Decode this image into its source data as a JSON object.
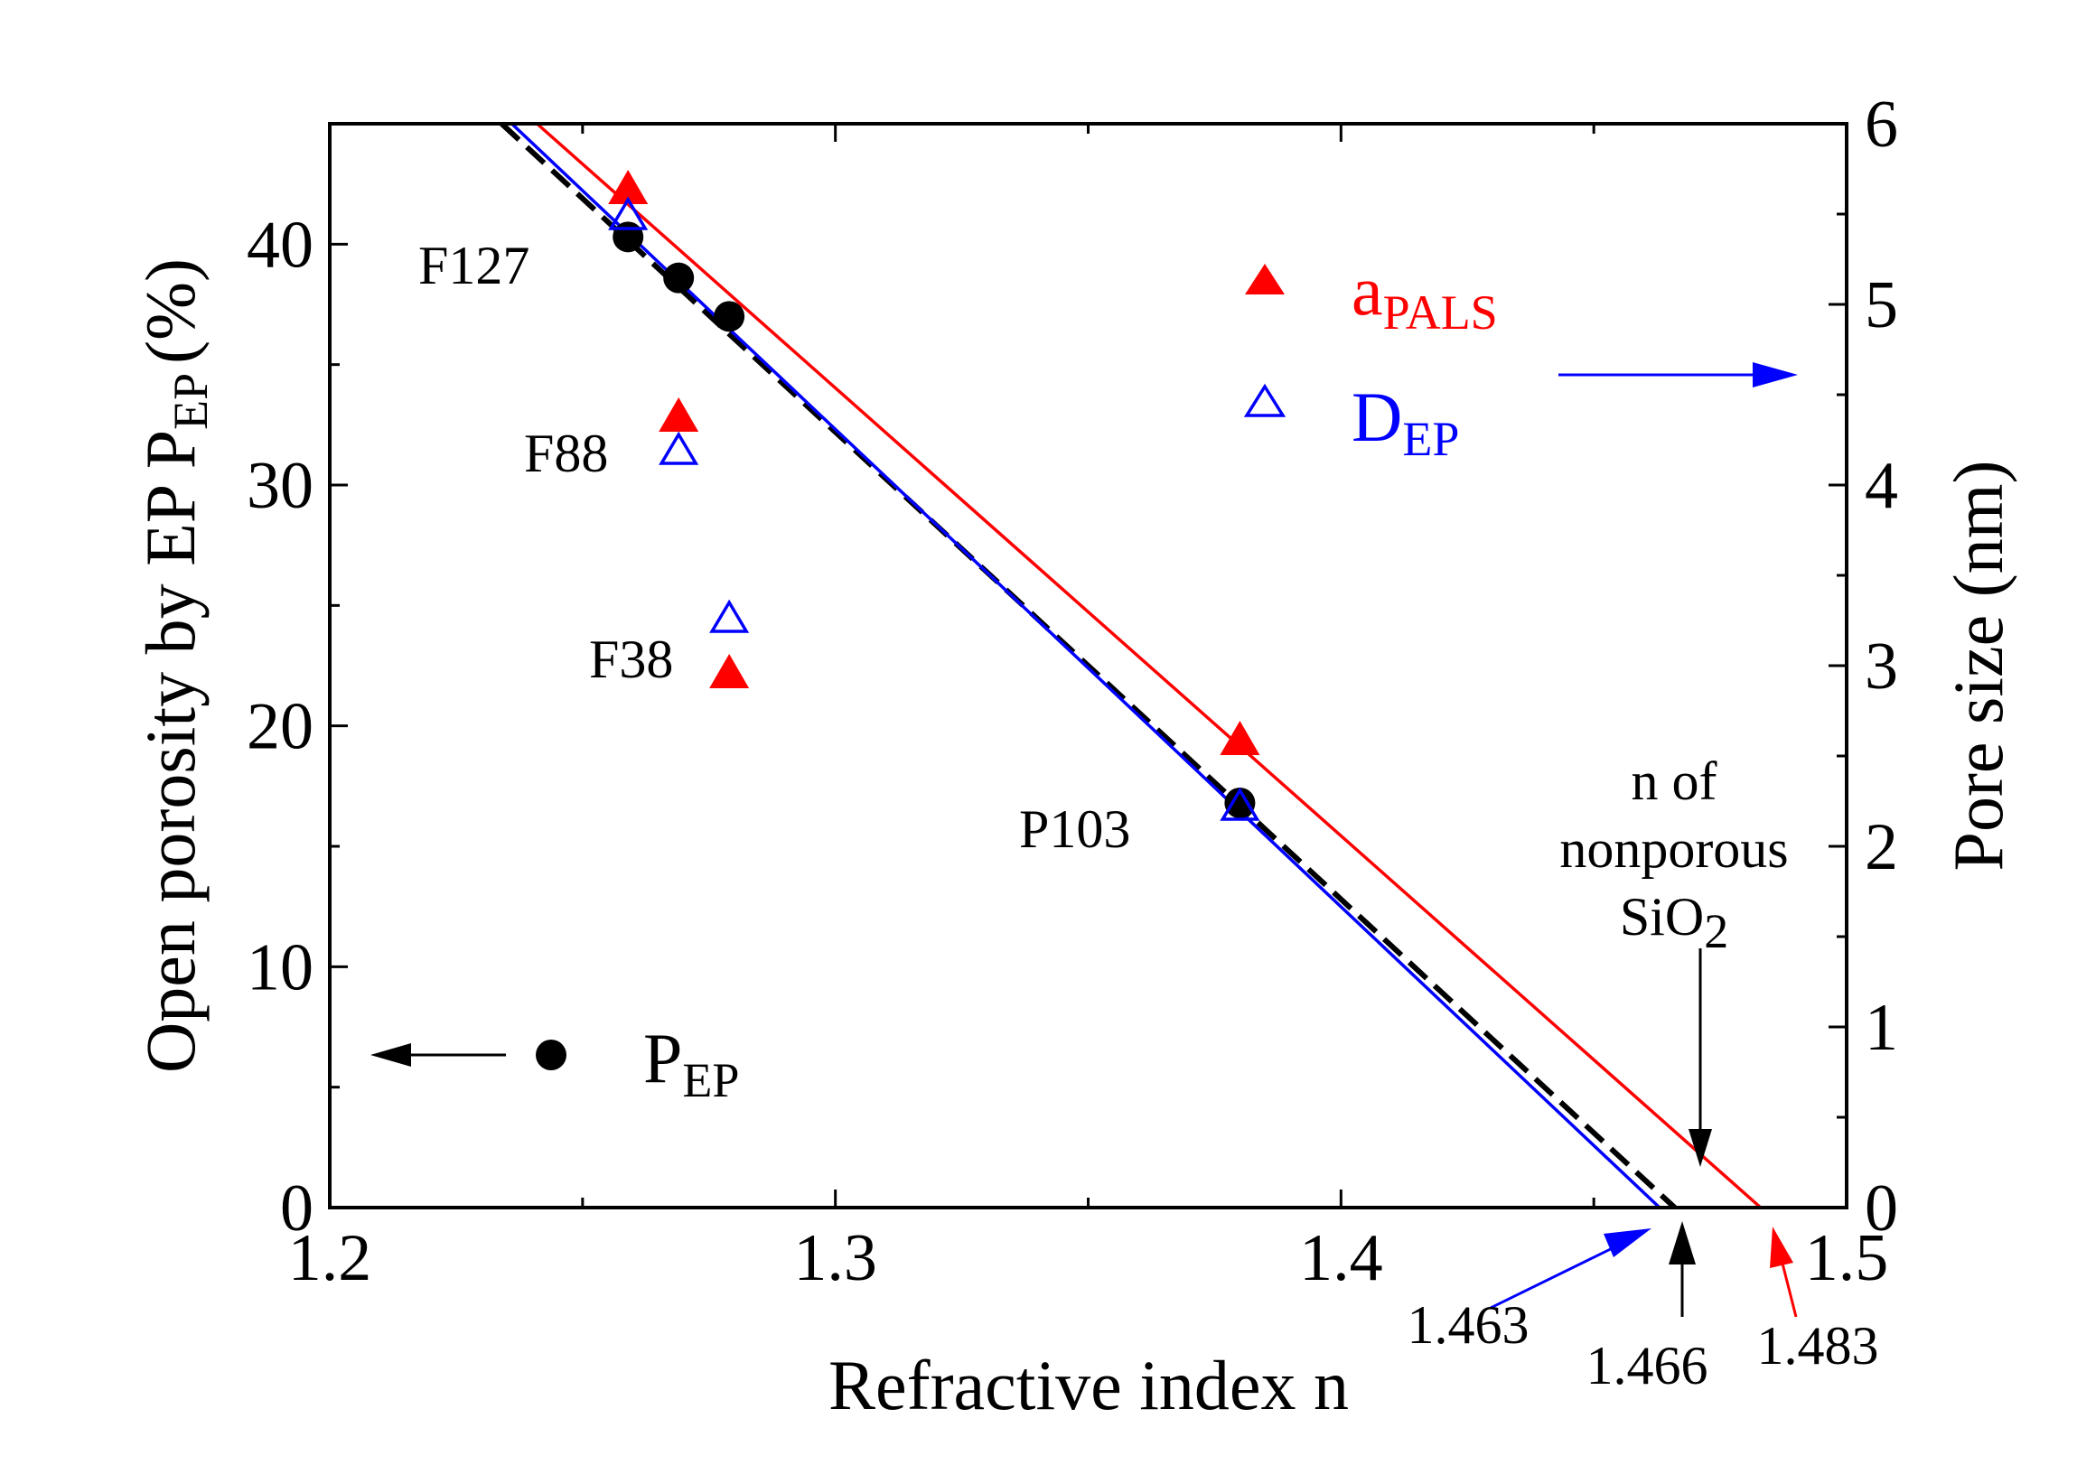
{
  "chart_data": {
    "type": "scatter",
    "xlabel": "Refractive index n",
    "ylabel_left": "Open porosity by EP P",
    "ylabel_left_sub": "EP",
    "ylabel_left_unit": "(%)",
    "ylabel_right": "Pore size (nm)",
    "xlim": [
      1.2,
      1.5
    ],
    "ylim_left": [
      0,
      45
    ],
    "ylim_right": [
      0,
      6
    ],
    "x_ticks": [
      "1.2",
      "1.3",
      "1.4",
      "1.5"
    ],
    "y_left_ticks": [
      "0",
      "10",
      "20",
      "30",
      "40"
    ],
    "y_right_ticks": [
      "0",
      "1",
      "2",
      "3",
      "4",
      "5",
      "6"
    ],
    "series": [
      {
        "name": "P_EP",
        "axis": "left",
        "marker": "filled-circle",
        "color": "#000000",
        "x": [
          1.259,
          1.269,
          1.279,
          1.38
        ],
        "y": [
          40.3,
          38.6,
          37.0,
          16.8
        ]
      },
      {
        "name": "a_PALS",
        "axis": "right",
        "marker": "filled-triangle",
        "color": "#ff0000",
        "x": [
          1.259,
          1.269,
          1.279,
          1.38
        ],
        "y": [
          5.65,
          4.39,
          2.97,
          2.6
        ]
      },
      {
        "name": "D_EP",
        "axis": "right",
        "marker": "open-triangle",
        "color": "#0000ff",
        "x": [
          1.259,
          1.269,
          1.279,
          1.38
        ],
        "y": [
          5.5,
          4.2,
          3.27,
          2.23
        ]
      }
    ],
    "fit_lines": [
      {
        "name": "P_EP fit",
        "axis": "left",
        "color": "#000000",
        "style": "dashed",
        "x": [
          1.234,
          1.466
        ],
        "y": [
          45,
          0
        ]
      },
      {
        "name": "D_EP fit",
        "axis": "right",
        "color": "#0000ff",
        "style": "solid",
        "x": [
          1.236,
          1.463
        ],
        "y": [
          6,
          0
        ]
      },
      {
        "name": "a_PALS fit",
        "axis": "right",
        "color": "#ff0000",
        "style": "solid",
        "x": [
          1.241,
          1.483
        ],
        "y": [
          6,
          0
        ]
      }
    ],
    "legend": {
      "a_pals_main": "a",
      "a_pals_sub": "PALS",
      "d_ep_main": "D",
      "d_ep_sub": "EP",
      "p_ep_main": "P",
      "p_ep_sub": "EP"
    },
    "annotations": {
      "f127": "F127",
      "f88": "F88",
      "f38": "F38",
      "p103": "P103",
      "nonporous_line1": "n of",
      "nonporous_line2": "nonporous",
      "nonporous_line3_main": "SiO",
      "nonporous_line3_sub": "2",
      "n_blue": "1.463",
      "n_black": "1.466",
      "n_red": "1.483"
    }
  }
}
